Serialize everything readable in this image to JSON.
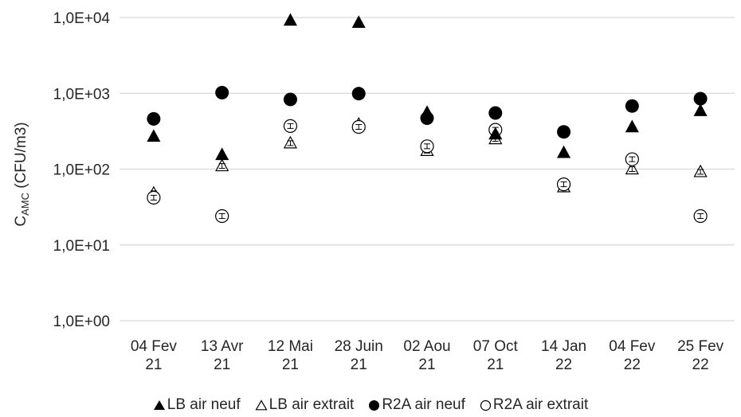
{
  "chart_data": {
    "type": "scatter",
    "xlabel": "",
    "ylabel_main": "C",
    "ylabel_sub": "AMC",
    "ylabel_rest": " (CFU/m3)",
    "yscale": "log",
    "ylim": [
      1,
      10000
    ],
    "yticks": [
      {
        "value": 1,
        "label": "1,0E+00"
      },
      {
        "value": 10,
        "label": "1,0E+01"
      },
      {
        "value": 100,
        "label": "1,0E+02"
      },
      {
        "value": 1000,
        "label": "1,0E+03"
      },
      {
        "value": 10000,
        "label": "1,0E+04"
      }
    ],
    "grid": "horizontal",
    "legend_position": "bottom",
    "categories": [
      [
        "04 Fev",
        "21"
      ],
      [
        "13 Avr",
        "21"
      ],
      [
        "12 Mai",
        "21"
      ],
      [
        "28 Juin",
        "21"
      ],
      [
        "02 Aou",
        "21"
      ],
      [
        "07 Oct",
        "21"
      ],
      [
        "14 Jan",
        "22"
      ],
      [
        "04 Fev",
        "22"
      ],
      [
        "25 Fev",
        "22"
      ]
    ],
    "series": [
      {
        "name": "LB air neuf",
        "marker": "triangle",
        "filled": true,
        "values": [
          270,
          155,
          9200,
          8600,
          560,
          290,
          165,
          360,
          590
        ]
      },
      {
        "name": "LB air extrait",
        "marker": "triangle",
        "filled": false,
        "values": [
          48,
          110,
          220,
          390,
          175,
          250,
          58,
          100,
          92
        ]
      },
      {
        "name": "R2A air neuf",
        "marker": "circle",
        "filled": true,
        "values": [
          460,
          1020,
          830,
          990,
          470,
          550,
          310,
          680,
          850
        ]
      },
      {
        "name": "R2A air extrait",
        "marker": "circle",
        "filled": false,
        "values": [
          42,
          24,
          370,
          360,
          200,
          330,
          63,
          135,
          24
        ]
      }
    ]
  },
  "legend": [
    {
      "symbol": "filled-triangle-icon",
      "label": "LB air neuf"
    },
    {
      "symbol": "open-triangle-icon",
      "label": "LB air extrait"
    },
    {
      "symbol": "filled-circle-icon",
      "label": "R2A air neuf"
    },
    {
      "symbol": "open-circle-icon",
      "label": "R2A air extrait"
    }
  ],
  "colors": {
    "marker": "#000000",
    "grid": "#d9d9d9",
    "text": "#262626",
    "open_fill": "#ffffff"
  }
}
